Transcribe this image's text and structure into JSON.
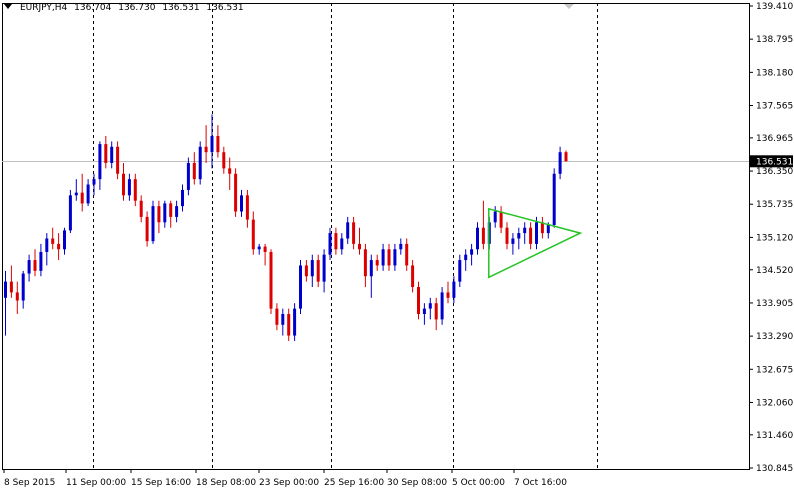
{
  "title_bar": {
    "symbol_timeframe": "EURJPY,H4",
    "open": "136.704",
    "high": "136.730",
    "low": "136.531",
    "close": "136.531"
  },
  "chart_data": {
    "type": "candlestick",
    "symbol": "EURJPY",
    "timeframe": "H4",
    "ylim": [
      130.845,
      139.41
    ],
    "y_ticks": [
      "139.410",
      "138.795",
      "138.180",
      "137.565",
      "136.965",
      "136.350",
      "135.735",
      "135.120",
      "134.520",
      "133.905",
      "133.290",
      "132.675",
      "132.060",
      "131.460",
      "130.845"
    ],
    "x_ticks": [
      "8 Sep 2015",
      "11 Sep 00:00",
      "15 Sep 16:00",
      "18 Sep 08:00",
      "23 Sep 00:00",
      "25 Sep 16:00",
      "30 Sep 08:00",
      "5 Oct 00:00",
      "7 Oct 16:00"
    ],
    "period_separators": [
      "11 Sep 00:00",
      "18 Sep 08:00",
      "25 Sep 16:00",
      "5 Oct 00:00",
      "12 Oct 00:00"
    ],
    "current_price": "136.531",
    "grid": false,
    "colors": {
      "bull": "#0000cc",
      "bear": "#dd0000",
      "triangle": "#22c322",
      "price_line": "#c0c0c0",
      "axis": "#000000"
    },
    "triangle": {
      "label": "",
      "points": [
        {
          "bar": 82,
          "price": 134.38
        },
        {
          "bar": 82,
          "price": 135.65
        },
        {
          "bar": 97.5,
          "price": 135.2
        }
      ]
    },
    "candles": [
      [
        134.0,
        134.5,
        133.3,
        134.3
      ],
      [
        134.3,
        134.6,
        134.0,
        134.1
      ],
      [
        134.1,
        134.3,
        133.7,
        133.95
      ],
      [
        133.95,
        134.5,
        133.8,
        134.45
      ],
      [
        134.45,
        134.8,
        134.3,
        134.7
      ],
      [
        134.7,
        134.9,
        134.4,
        134.5
      ],
      [
        134.5,
        135.0,
        134.4,
        134.85
      ],
      [
        134.85,
        135.2,
        134.6,
        135.1
      ],
      [
        135.1,
        135.3,
        134.9,
        135.0
      ],
      [
        135.0,
        135.2,
        134.7,
        134.9
      ],
      [
        134.9,
        135.3,
        134.8,
        135.25
      ],
      [
        135.25,
        136.0,
        135.2,
        135.9
      ],
      [
        135.9,
        136.2,
        135.8,
        135.95
      ],
      [
        135.95,
        136.3,
        135.6,
        135.75
      ],
      [
        135.75,
        136.2,
        135.7,
        136.1
      ],
      [
        136.1,
        136.3,
        135.9,
        136.2
      ],
      [
        136.2,
        136.9,
        136.0,
        136.85
      ],
      [
        136.85,
        137.0,
        136.4,
        136.5
      ],
      [
        136.5,
        136.9,
        136.4,
        136.8
      ],
      [
        136.8,
        136.9,
        136.2,
        136.3
      ],
      [
        136.3,
        136.5,
        135.8,
        135.9
      ],
      [
        135.9,
        136.3,
        135.8,
        136.2
      ],
      [
        136.2,
        136.3,
        135.7,
        135.8
      ],
      [
        135.8,
        135.9,
        135.4,
        135.5
      ],
      [
        135.5,
        135.6,
        134.95,
        135.05
      ],
      [
        135.05,
        135.8,
        135.0,
        135.7
      ],
      [
        135.7,
        135.8,
        135.2,
        135.4
      ],
      [
        135.4,
        135.8,
        135.3,
        135.75
      ],
      [
        135.75,
        135.8,
        135.3,
        135.5
      ],
      [
        135.5,
        135.8,
        135.4,
        135.7
      ],
      [
        135.7,
        136.1,
        135.6,
        136.0
      ],
      [
        136.0,
        136.6,
        135.9,
        136.5
      ],
      [
        136.5,
        136.7,
        136.1,
        136.2
      ],
      [
        136.2,
        136.9,
        136.1,
        136.8
      ],
      [
        136.8,
        137.2,
        136.5,
        136.7
      ],
      [
        136.7,
        137.4,
        136.4,
        137.0
      ],
      [
        137.0,
        137.2,
        136.6,
        136.7
      ],
      [
        136.7,
        136.8,
        136.3,
        136.4
      ],
      [
        136.4,
        136.6,
        136.0,
        136.3
      ],
      [
        136.3,
        136.4,
        135.5,
        135.6
      ],
      [
        135.6,
        136.0,
        135.5,
        135.9
      ],
      [
        135.9,
        136.0,
        135.3,
        135.45
      ],
      [
        135.45,
        135.6,
        134.8,
        134.9
      ],
      [
        134.9,
        135.0,
        134.8,
        134.95
      ],
      [
        134.95,
        135.0,
        134.6,
        134.85
      ],
      [
        134.85,
        134.9,
        133.7,
        133.8
      ],
      [
        133.8,
        133.9,
        133.4,
        133.5
      ],
      [
        133.5,
        133.8,
        133.3,
        133.7
      ],
      [
        133.7,
        133.8,
        133.2,
        133.3
      ],
      [
        133.3,
        133.9,
        133.2,
        133.8
      ],
      [
        133.8,
        134.7,
        133.7,
        134.6
      ],
      [
        134.6,
        134.7,
        134.3,
        134.4
      ],
      [
        134.4,
        134.8,
        134.2,
        134.7
      ],
      [
        134.7,
        134.8,
        134.2,
        134.3
      ],
      [
        134.3,
        134.9,
        134.1,
        134.8
      ],
      [
        134.8,
        135.3,
        134.7,
        135.2
      ],
      [
        135.2,
        135.3,
        134.8,
        134.9
      ],
      [
        134.9,
        135.2,
        134.8,
        135.1
      ],
      [
        135.1,
        135.5,
        135.0,
        135.4
      ],
      [
        135.4,
        135.5,
        134.9,
        135.0
      ],
      [
        135.0,
        135.3,
        134.8,
        134.9
      ],
      [
        134.9,
        135.0,
        134.2,
        134.4
      ],
      [
        134.4,
        134.8,
        134.0,
        134.7
      ],
      [
        134.7,
        134.8,
        134.5,
        134.6
      ],
      [
        134.6,
        135.0,
        134.5,
        134.9
      ],
      [
        134.9,
        135.0,
        134.5,
        134.6
      ],
      [
        134.6,
        135.0,
        134.5,
        134.9
      ],
      [
        134.9,
        135.1,
        134.8,
        135.0
      ],
      [
        135.0,
        135.1,
        134.5,
        134.6
      ],
      [
        134.6,
        134.7,
        134.1,
        134.2
      ],
      [
        134.2,
        134.3,
        133.6,
        133.7
      ],
      [
        133.7,
        133.9,
        133.5,
        133.8
      ],
      [
        133.8,
        134.0,
        133.6,
        133.9
      ],
      [
        133.9,
        134.0,
        133.4,
        133.6
      ],
      [
        133.6,
        134.2,
        133.5,
        134.1
      ],
      [
        134.1,
        134.3,
        133.9,
        134.0
      ],
      [
        134.0,
        134.4,
        133.9,
        134.3
      ],
      [
        134.3,
        134.8,
        134.2,
        134.7
      ],
      [
        134.7,
        134.9,
        134.5,
        134.8
      ],
      [
        134.8,
        135.0,
        134.6,
        134.9
      ],
      [
        134.9,
        135.4,
        134.8,
        135.3
      ],
      [
        135.3,
        135.8,
        134.9,
        135.0
      ],
      [
        135.0,
        135.5,
        134.9,
        135.4
      ],
      [
        135.4,
        135.7,
        135.3,
        135.6
      ],
      [
        135.6,
        135.7,
        135.2,
        135.3
      ],
      [
        135.3,
        135.4,
        134.9,
        135.0
      ],
      [
        135.0,
        135.2,
        134.8,
        135.1
      ],
      [
        135.1,
        135.3,
        134.9,
        135.2
      ],
      [
        135.2,
        135.4,
        135.0,
        135.3
      ],
      [
        135.3,
        135.4,
        134.9,
        135.0
      ],
      [
        135.0,
        135.5,
        134.9,
        135.4
      ],
      [
        135.4,
        135.5,
        135.1,
        135.2
      ],
      [
        135.2,
        135.4,
        135.1,
        135.35
      ],
      [
        135.35,
        136.4,
        135.3,
        136.3
      ],
      [
        136.3,
        136.8,
        136.2,
        136.7
      ],
      [
        136.7,
        136.73,
        136.53,
        136.53
      ]
    ]
  }
}
